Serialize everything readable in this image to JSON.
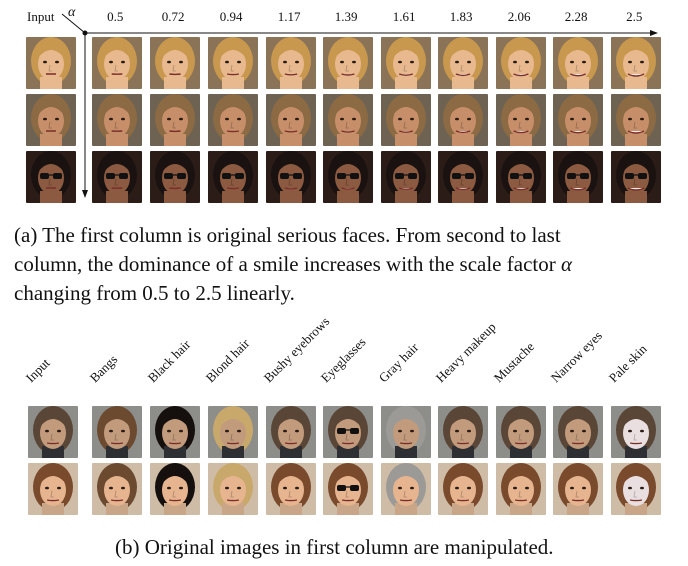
{
  "part_a": {
    "input_label": "Input",
    "axis_symbol": "α",
    "alpha_values": [
      "0.5",
      "0.72",
      "0.94",
      "1.17",
      "1.39",
      "1.61",
      "1.83",
      "2.06",
      "2.28",
      "2.5"
    ],
    "caption": {
      "line1": "(a) The first column is original serious faces.  From second to last",
      "line2_prefix": "column, the dominance of a smile increases with the scale factor ",
      "line2_symbol": "α",
      "line3": "changing from 0.5 to 2.5 linearly."
    },
    "rows": [
      {
        "skin": "#e8b98f",
        "hair": "#c9984f",
        "bg": "#8a7356"
      },
      {
        "skin": "#c68e69",
        "hair": "#8c6a43",
        "bg": "#6e6352"
      },
      {
        "skin": "#8b5a40",
        "hair": "#1a1210",
        "bg": "#2b1c17",
        "glasses": true
      }
    ]
  },
  "part_b": {
    "attributes": [
      "Input",
      "Bangs",
      "Black hair",
      "Blond hair",
      "Bushy eyebrows",
      "Eyeglasses",
      "Gray hair",
      "Heavy makeup",
      "Mustache",
      "Narrow eyes",
      "Pale skin"
    ],
    "rows": [
      {
        "skin": "#c29a7c",
        "hair": "#5a4636",
        "bg": "#8d8d8a",
        "shirt": "#2d2f33"
      },
      {
        "skin": "#e6b48f",
        "hair": "#7a4a2c",
        "bg": "#cfbca6",
        "shirt": "#c9a688"
      }
    ],
    "caption": "(b) Original images in first column are manipulated."
  }
}
